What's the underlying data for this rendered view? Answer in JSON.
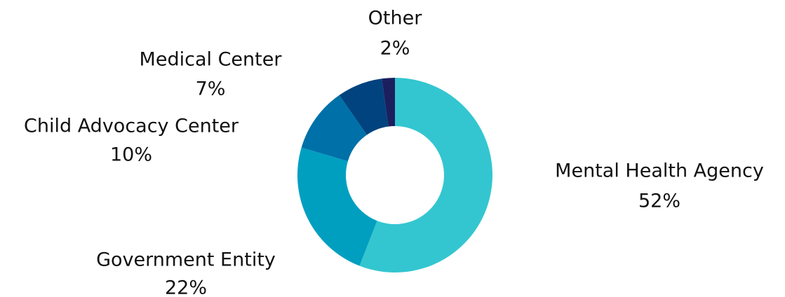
{
  "chart_data": {
    "type": "donut",
    "categories": [
      "Mental Health Agency",
      "Government Entity",
      "Child Advocacy Center",
      "Medical Center",
      "Other"
    ],
    "values": [
      52,
      22,
      10,
      7,
      2
    ],
    "value_labels": [
      "52%",
      "22%",
      "10%",
      "7%",
      "2%"
    ],
    "colors": [
      "#33c6d0",
      "#009fc0",
      "#0070a8",
      "#00437e",
      "#1b1f5e",
      "#5a2d6e"
    ]
  }
}
